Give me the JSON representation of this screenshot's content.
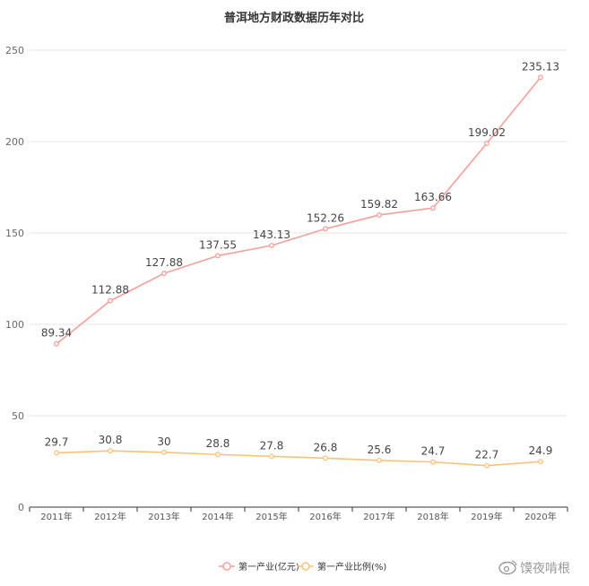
{
  "chart_data": {
    "type": "line",
    "title": "普洱地方财政数据历年对比",
    "x": [
      "2011年",
      "2012年",
      "2013年",
      "2014年",
      "2015年",
      "2016年",
      "2017年",
      "2018年",
      "2019年",
      "2020年"
    ],
    "ylim": [
      0,
      250
    ],
    "yticks": [
      0,
      50,
      100,
      150,
      200,
      250
    ],
    "grid": true,
    "legend_position": "bottom",
    "series": [
      {
        "name": "第一产业(亿元)",
        "color": "#f4a09a",
        "values": [
          89.34,
          112.88,
          127.88,
          137.55,
          143.13,
          152.26,
          159.82,
          163.66,
          199.02,
          235.13
        ],
        "labels": [
          "89.34",
          "112.88",
          "127.88",
          "137.55",
          "143.13",
          "152.26",
          "159.82",
          "163.66",
          "199.02",
          "235.13"
        ]
      },
      {
        "name": "第一产业比例(%)",
        "color": "#f8c27a",
        "values": [
          29.7,
          30.8,
          30,
          28.8,
          27.8,
          26.8,
          25.6,
          24.7,
          22.7,
          24.9
        ],
        "labels": [
          "29.7",
          "30.8",
          "30",
          "28.8",
          "27.8",
          "26.8",
          "25.6",
          "24.7",
          "22.7",
          "24.9"
        ]
      }
    ]
  },
  "watermark": {
    "text": "馍夜啃根",
    "icon": "weibo-icon"
  }
}
